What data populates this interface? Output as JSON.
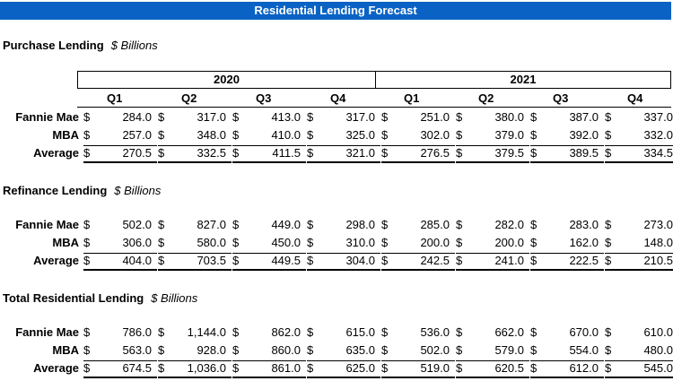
{
  "title": "Residential Lending Forecast",
  "years": [
    "2020",
    "2021"
  ],
  "quarters": [
    "Q1",
    "Q2",
    "Q3",
    "Q4",
    "Q1",
    "Q2",
    "Q3",
    "Q4"
  ],
  "currency_symbol": "$",
  "sections": [
    {
      "title": "Purchase Lending",
      "units": "$ Billions",
      "rows": [
        {
          "label": "Fannie Mae",
          "values": [
            "284.0",
            "317.0",
            "413.0",
            "317.0",
            "251.0",
            "380.0",
            "387.0",
            "337.0"
          ]
        },
        {
          "label": "MBA",
          "values": [
            "257.0",
            "348.0",
            "410.0",
            "325.0",
            "302.0",
            "379.0",
            "392.0",
            "332.0"
          ]
        },
        {
          "label": "Average",
          "values": [
            "270.5",
            "332.5",
            "411.5",
            "321.0",
            "276.5",
            "379.5",
            "389.5",
            "334.5"
          ]
        }
      ]
    },
    {
      "title": "Refinance Lending",
      "units": "$ Billions",
      "rows": [
        {
          "label": "Fannie Mae",
          "values": [
            "502.0",
            "827.0",
            "449.0",
            "298.0",
            "285.0",
            "282.0",
            "283.0",
            "273.0"
          ]
        },
        {
          "label": "MBA",
          "values": [
            "306.0",
            "580.0",
            "450.0",
            "310.0",
            "200.0",
            "200.0",
            "162.0",
            "148.0"
          ]
        },
        {
          "label": "Average",
          "values": [
            "404.0",
            "703.5",
            "449.5",
            "304.0",
            "242.5",
            "241.0",
            "222.5",
            "210.5"
          ]
        }
      ]
    },
    {
      "title": "Total Residential Lending",
      "units": "$ Billions",
      "rows": [
        {
          "label": "Fannie Mae",
          "values": [
            "786.0",
            "1,144.0",
            "862.0",
            "615.0",
            "536.0",
            "662.0",
            "670.0",
            "610.0"
          ]
        },
        {
          "label": "MBA",
          "values": [
            "563.0",
            "928.0",
            "860.0",
            "635.0",
            "502.0",
            "579.0",
            "554.0",
            "480.0"
          ]
        },
        {
          "label": "Average",
          "values": [
            "674.5",
            "1,036.0",
            "861.0",
            "625.0",
            "519.0",
            "620.5",
            "612.0",
            "545.0"
          ]
        }
      ]
    }
  ]
}
